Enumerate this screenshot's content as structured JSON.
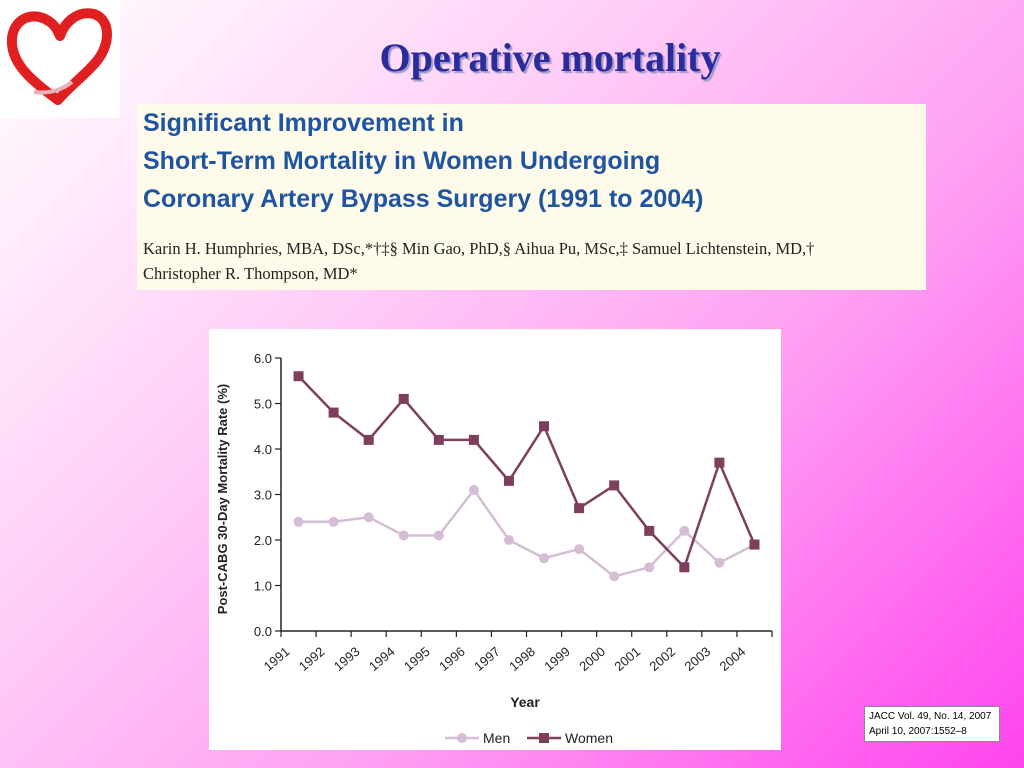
{
  "slide": {
    "title": "Operative mortality"
  },
  "paper": {
    "title_lines": [
      "Significant Improvement in",
      "Short-Term Mortality in Women Undergoing",
      "Coronary Artery Bypass Surgery (1991 to 2004)"
    ],
    "authors_lines": [
      "Karin H. Humphries, MBA, DSc,*†‡§ Min Gao, PhD,§ Aihua Pu, MSc,‡ Samuel Lichtenstein, MD,†",
      "Christopher R. Thompson, MD*"
    ]
  },
  "citation": {
    "lines": [
      "JACC Vol. 49, No. 14, 2007",
      "April 10, 2007:1552–8"
    ]
  },
  "colors": {
    "title": "#2b2b9a",
    "paper_title": "#1f55a0",
    "men": "#d5bed5",
    "women": "#7e3f5c",
    "logo_heart": "#e02020"
  },
  "chart_data": {
    "type": "line",
    "title": "",
    "xlabel": "Year",
    "ylabel": "Post-CABG 30-Day Mortality Rate (%)",
    "ylim": [
      0,
      6
    ],
    "yticks": [
      "0.0",
      "1.0",
      "2.0",
      "3.0",
      "4.0",
      "5.0",
      "6.0"
    ],
    "x": [
      "1991",
      "1992",
      "1993",
      "1994",
      "1995",
      "1996",
      "1997",
      "1998",
      "1999",
      "2000",
      "2001",
      "2002",
      "2003",
      "2004"
    ],
    "series": [
      {
        "name": "Men",
        "values": [
          2.4,
          2.4,
          2.5,
          2.1,
          2.1,
          3.1,
          2.0,
          1.6,
          1.8,
          1.2,
          1.4,
          2.2,
          1.5,
          1.9
        ]
      },
      {
        "name": "Women",
        "values": [
          5.6,
          4.8,
          4.2,
          5.1,
          4.2,
          4.2,
          3.3,
          4.5,
          2.7,
          3.2,
          2.2,
          1.4,
          3.7,
          1.9
        ]
      }
    ],
    "grid": false,
    "legend": "bottom"
  }
}
